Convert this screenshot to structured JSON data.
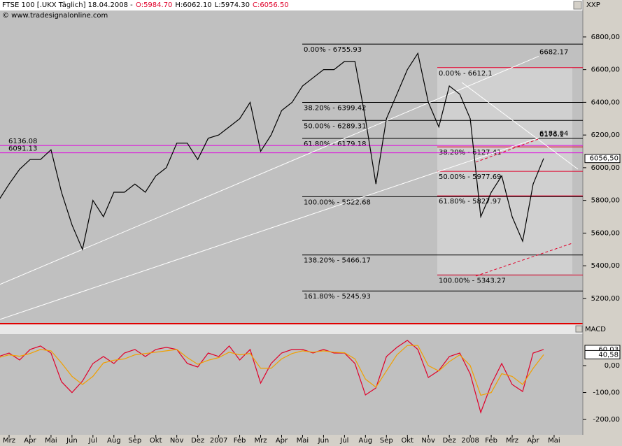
{
  "header": {
    "title": "FTSE 100 [.UKX  Täglich] 18.04.2008 -",
    "ohlc": [
      "O:5984.70",
      "H:6062.10",
      "L:5974.30",
      "C:6056.50"
    ],
    "subtitle": "© www.tradesignalonline.com",
    "axis_label": "XXP"
  },
  "chart_data": [
    {
      "type": "line",
      "categories": [
        null,
        "Mrz",
        null,
        "Apr",
        null,
        "Mai",
        null,
        "Jun",
        null,
        "Jul",
        null,
        "Aug",
        null,
        "Sep",
        null,
        "Okt",
        null,
        "Nov",
        null,
        "Dez",
        null,
        "2007",
        null,
        "Feb",
        null,
        "Mrz",
        null,
        "Apr",
        null,
        "Mai",
        null,
        "Jun",
        null,
        "Jul",
        null,
        "Aug",
        null,
        "Sep",
        null,
        "Okt",
        null,
        "Nov",
        null,
        "Dez",
        null,
        "2008",
        null,
        "Feb",
        null,
        "Mrz",
        null,
        "Apr",
        null,
        "Mai"
      ],
      "series": [
        {
          "color": "#000000",
          "values": [
            5800,
            5900,
            5990,
            6050,
            6050,
            6110,
            5850,
            5650,
            5500,
            5800,
            5700,
            5850,
            5850,
            5900,
            5850,
            5950,
            6000,
            6150,
            6150,
            6050,
            6180,
            6200,
            6250,
            6300,
            6400,
            6100,
            6200,
            6350,
            6400,
            6500,
            6550,
            6600,
            6600,
            6650,
            6650,
            6300,
            5900,
            6300,
            6450,
            6600,
            6700,
            6400,
            6250,
            6500,
            6450,
            6300,
            5700,
            5850,
            5950,
            5700,
            5550,
            5900,
            6056.5,
            null
          ]
        }
      ],
      "last_value": {
        "value": 6056.5,
        "label": "6056,50"
      },
      "ylim": [
        5050,
        6962
      ],
      "yticks": [
        {
          "value": 5200,
          "label": "5200,00"
        },
        {
          "value": 5400,
          "label": "5400,00"
        },
        {
          "value": 5600,
          "label": "5600,00"
        },
        {
          "value": 5800,
          "label": "5800,00"
        },
        {
          "value": 6000,
          "label": "6000,00"
        },
        {
          "value": 6200,
          "label": "6200,00"
        },
        {
          "value": 6400,
          "label": "6400,00"
        },
        {
          "value": 6600,
          "label": "6600,00"
        },
        {
          "value": 6800,
          "label": "6800,00"
        }
      ],
      "fib_levels": {
        "color": "#000000",
        "levels": [
          {
            "value": 6755.93,
            "label": "0.00% - 6755.93"
          },
          {
            "value": 6399.42,
            "label": "38.20% - 6399.42"
          },
          {
            "value": 6289.31,
            "label": "50.00% - 6289.31"
          },
          {
            "value": 6179.18,
            "label": "61.80% - 6179.18"
          },
          {
            "value": 5822.68,
            "label": "100.00% - 5822.68"
          },
          {
            "value": 5466.17,
            "label": "138.20% - 5466.17"
          },
          {
            "value": 5245.93,
            "label": "161.80% - 5245.93"
          }
        ]
      },
      "fib_levels_2": {
        "color": "#e0002a",
        "levels": [
          {
            "value": 6612.1,
            "label": "0.00% - 6612.1"
          },
          {
            "value": 6127.41,
            "label": "38.20% - 6127.41"
          },
          {
            "value": 5977.69,
            "label": "50.00% - 5977.69"
          },
          {
            "value": 5827.97,
            "label": "61.80% - 5827.97"
          },
          {
            "value": 5343.27,
            "label": "100.00% - 5343.27"
          }
        ]
      },
      "horizontal_lines": {
        "color": "#e000e0",
        "values": [
          6136.08,
          6091.13
        ]
      },
      "trendlines": [
        {
          "color": "#ffffff",
          "dashed": false,
          "values": [
            5286,
            6682.17
          ]
        },
        {
          "color": "#ffffff",
          "dashed": false,
          "values": [
            5072,
            6183.04
          ]
        },
        {
          "color": "#ffffff",
          "dashed": false,
          "values": [
            6522,
            5991
          ]
        },
        {
          "color": "#e0002a",
          "dashed": true,
          "values": [
            6034,
            6176.1
          ]
        },
        {
          "color": "#e0002a",
          "dashed": true,
          "values": [
            5337,
            5538
          ]
        }
      ]
    },
    {
      "type": "line",
      "title": "MACD",
      "series": [
        {
          "color": "#e0002a",
          "values": [
            34,
            47,
            21,
            60,
            73,
            47,
            -60,
            -100,
            -57,
            8,
            34,
            8,
            47,
            60,
            34,
            60,
            68,
            60,
            8,
            -5,
            47,
            34,
            73,
            21,
            60,
            -65,
            8,
            47,
            60,
            60,
            47,
            60,
            47,
            47,
            8,
            -109,
            -83,
            34,
            68,
            94,
            60,
            -44,
            -18,
            34,
            47,
            -31,
            -174,
            -70,
            8,
            -70,
            -96,
            47,
            60.03,
            null
          ]
        },
        {
          "color": "#f0a000",
          "values": [
            30,
            40,
            35,
            45,
            60,
            55,
            10,
            -40,
            -70,
            -40,
            10,
            20,
            25,
            40,
            45,
            50,
            55,
            60,
            30,
            5,
            20,
            30,
            50,
            40,
            45,
            -10,
            -10,
            25,
            45,
            55,
            50,
            55,
            50,
            48,
            25,
            -50,
            -80,
            -20,
            40,
            75,
            75,
            0,
            -20,
            15,
            40,
            0,
            -110,
            -100,
            -30,
            -40,
            -70,
            -10,
            40.58,
            null
          ]
        }
      ],
      "last_values": [
        {
          "value": 60.03,
          "label": "60,03"
        },
        {
          "value": 40.58,
          "label": "40,58"
        }
      ],
      "ylim": [
        -257,
        117
      ],
      "yticks": [
        {
          "value": 0,
          "label": "0,00"
        },
        {
          "value": -100,
          "label": "-100,00"
        },
        {
          "value": -200,
          "label": "-200,00"
        }
      ]
    }
  ]
}
